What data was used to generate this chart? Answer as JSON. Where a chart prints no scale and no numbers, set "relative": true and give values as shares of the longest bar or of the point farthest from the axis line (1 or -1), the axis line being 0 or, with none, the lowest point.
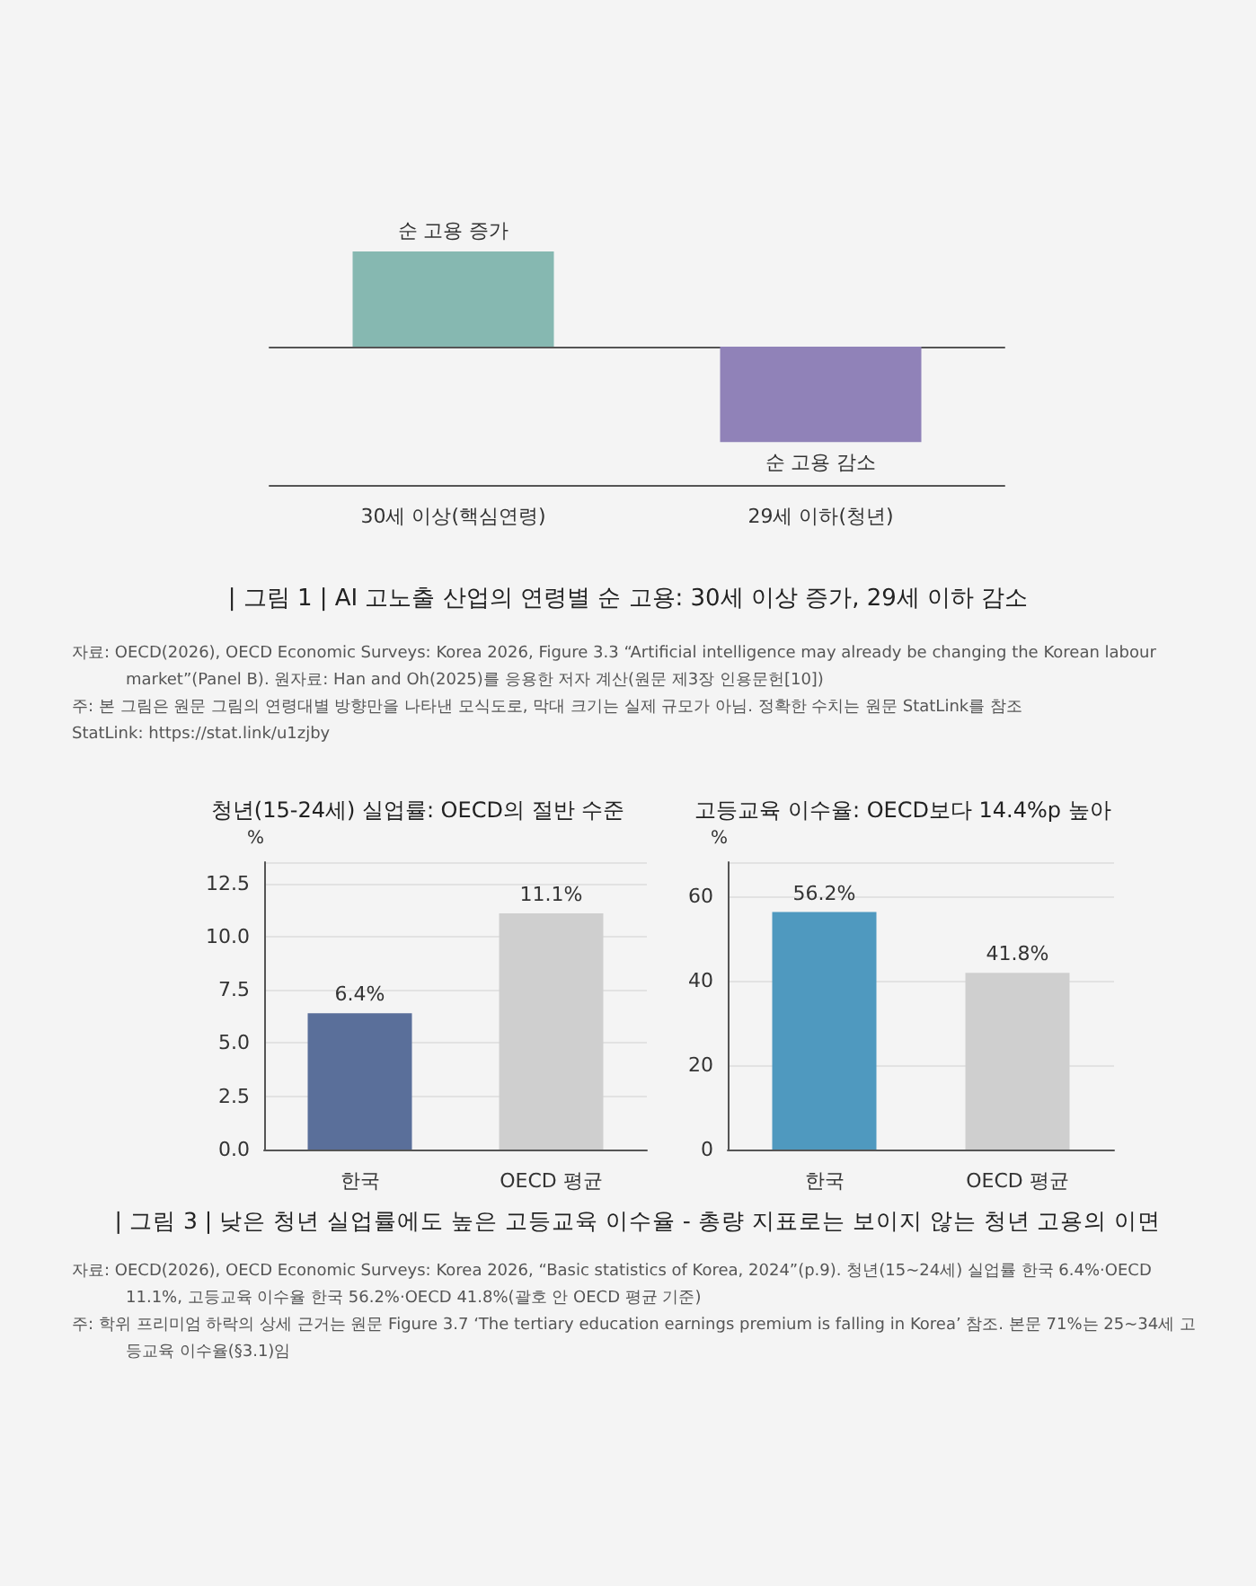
{
  "chart_data": [
    {
      "type": "bar",
      "title": "| 그림 1 | AI 고노출 산업의 연령별 순 고용: 30세 이상 증가, 29세 이하 감소",
      "relative": true,
      "categories": [
        "30세 이상(핵심연령)",
        "29세 이하(청년)"
      ],
      "values": [
        1,
        -1
      ],
      "colors": [
        "#86b8b1",
        "#9082b8"
      ],
      "annotations": [
        {
          "text": "순 고용 증가",
          "x": "30세 이상(핵심연령)",
          "y": 1
        },
        {
          "text": "순 고용 감소",
          "x": "29세 이하(청년)",
          "y": -1
        },
        "자료: OECD(2026), OECD Economic Surveys: Korea 2026, Figure 3.3 “Artificial intelligence may already be changing the Korean labour market”(Panel B). 원자료: Han and Oh(2025)를 응용한 저자 계산(원문 제3장 인용문헌[10])",
        "주: 본 그림은 원문 그림의 연령대별 방향만을 나타낸 모식도로, 막대 크기는 실제 규모가 아님. 정확한 수치는 원문 StatLink를 참조",
        "StatLink: https://stat.link/u1zjby"
      ]
    },
    {
      "type": "bar",
      "title": "청년(15-24세) 실업률: OECD의 절반 수준",
      "ylabel": "%",
      "categories": [
        "한국",
        "OECD 평균"
      ],
      "values": [
        6.4,
        11.1
      ],
      "colors": [
        "#5a6f9a",
        "#cfcfcf"
      ],
      "value_labels": [
        "6.4%",
        "11.1%"
      ],
      "ylim": [
        0,
        13.5
      ],
      "yticks": [
        {
          "value": 0,
          "label": "0.0"
        },
        {
          "value": 2.5,
          "label": "2.5"
        },
        {
          "value": 5,
          "label": "5.0"
        },
        {
          "value": 7.5,
          "label": "7.5"
        },
        {
          "value": 10,
          "label": "10.0"
        },
        {
          "value": 12.5,
          "label": "12.5"
        }
      ],
      "grid": "y"
    },
    {
      "type": "bar",
      "title": "고등교육 이수율: OECD보다 14.4%p 높아",
      "ylabel": "%",
      "categories": [
        "한국",
        "OECD 평균"
      ],
      "values": [
        56.2,
        41.8
      ],
      "colors": [
        "#4f99bf",
        "#cfcfcf"
      ],
      "value_labels": [
        "56.2%",
        "41.8%"
      ],
      "ylim": [
        0,
        68
      ],
      "yticks": [
        0,
        20,
        40,
        60
      ],
      "grid": "y",
      "annotations": [
        "| 그림 3 | 낮은 청년 실업률에도 높은 고등교육 이수율 -  총량 지표로는 보이지 않는 청년 고용의 이면",
        "자료: OECD(2026), OECD Economic Surveys: Korea 2026, “Basic statistics of Korea, 2024”(p.9). 청년(15~24세) 실업률 한국 6.4%·OECD 11.1%, 고등교육 이수율 한국 56.2%·OECD 41.8%(괄호 안 OECD 평균 기준)",
        "주: 학위 프리미엄 하락의 상세 근거는 원문 Figure 3.7 ‘The tertiary education earnings premium is falling in Korea’ 참조. 본문 71%는 25~34세 고등교육 이수율(§3.1)임"
      ]
    }
  ]
}
